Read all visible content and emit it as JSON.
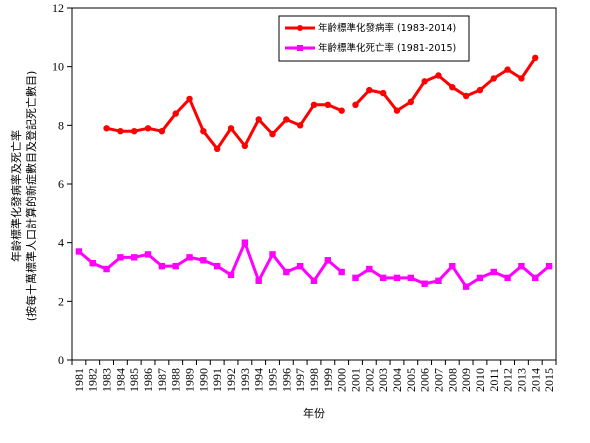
{
  "chart_data": {
    "type": "line",
    "xlabel": "年份",
    "ylabel": [
      "年齡標準化發病率及死亡率",
      "(按每十萬標準人口計算的新症數目及登記死亡數目)"
    ],
    "ylim": [
      0,
      12
    ],
    "yticks": [
      0,
      2,
      4,
      6,
      8,
      10,
      12
    ],
    "categories": [
      "1981",
      "1982",
      "1983",
      "1984",
      "1985",
      "1986",
      "1987",
      "1988",
      "1989",
      "1990",
      "1991",
      "1992",
      "1993",
      "1994",
      "1995",
      "1996",
      "1997",
      "1998",
      "1999",
      "2000",
      "2001",
      "2002",
      "2003",
      "2004",
      "2005",
      "2006",
      "2007",
      "2008",
      "2009",
      "2010",
      "2011",
      "2012",
      "2013",
      "2014",
      "2015"
    ],
    "legend_position": "top-right",
    "grid": false,
    "series": [
      {
        "name": "年齡標準化發病率 (1983-2014)",
        "color": "#ff0000",
        "marker": "circle",
        "values": [
          null,
          null,
          7.9,
          7.8,
          7.8,
          7.9,
          7.8,
          8.4,
          8.9,
          7.8,
          7.2,
          7.9,
          7.3,
          8.2,
          7.7,
          8.2,
          8.0,
          8.7,
          8.7,
          8.5,
          8.7,
          9.2,
          9.1,
          8.5,
          8.8,
          9.5,
          9.7,
          9.3,
          9.0,
          9.2,
          9.6,
          9.9,
          9.6,
          10.3,
          null
        ],
        "break_after": "2000"
      },
      {
        "name": "年齡標準化死亡率 (1981-2015)",
        "color": "#ff00ff",
        "marker": "square",
        "values": [
          3.7,
          3.3,
          3.1,
          3.5,
          3.5,
          3.6,
          3.2,
          3.2,
          3.5,
          3.4,
          3.2,
          2.9,
          4.0,
          2.7,
          3.6,
          3.0,
          3.2,
          2.7,
          3.4,
          3.0,
          2.8,
          3.1,
          2.8,
          2.8,
          2.8,
          2.6,
          2.7,
          3.2,
          2.5,
          2.8,
          3.0,
          2.8,
          3.2,
          2.8,
          3.2
        ],
        "break_after": "2000"
      }
    ]
  }
}
